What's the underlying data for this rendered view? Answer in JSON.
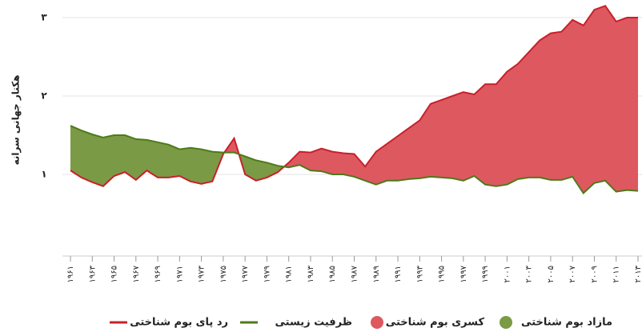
{
  "chart_data": {
    "type": "area-line",
    "y_axis_label": "هکتار جهانی سرانه",
    "x": [
      1961,
      1962,
      1963,
      1964,
      1965,
      1966,
      1967,
      1968,
      1969,
      1970,
      1971,
      1972,
      1973,
      1974,
      1975,
      1976,
      1977,
      1978,
      1979,
      1980,
      1981,
      1982,
      1983,
      1984,
      1985,
      1986,
      1987,
      1988,
      1989,
      1990,
      1991,
      1992,
      1993,
      1994,
      1995,
      1996,
      1997,
      1998,
      1999,
      2000,
      2001,
      2002,
      2003,
      2004,
      2005,
      2006,
      2007,
      2008,
      2009,
      2010,
      2011,
      2012,
      2013
    ],
    "series": [
      {
        "name": "رد پای بوم شناختی",
        "color": "#c8202a",
        "values": [
          1.05,
          0.96,
          0.9,
          0.85,
          0.98,
          1.03,
          0.93,
          1.05,
          0.96,
          0.96,
          0.98,
          0.91,
          0.88,
          0.91,
          1.26,
          1.46,
          1.0,
          0.92,
          0.96,
          1.03,
          1.15,
          1.29,
          1.28,
          1.33,
          1.29,
          1.27,
          1.26,
          1.1,
          1.29,
          1.39,
          1.49,
          1.59,
          1.69,
          1.9,
          1.95,
          2.0,
          2.05,
          2.02,
          2.15,
          2.15,
          2.31,
          2.41,
          2.56,
          2.71,
          2.8,
          2.82,
          2.97,
          2.9,
          3.1,
          3.15,
          2.95,
          3.0,
          3.0
        ]
      },
      {
        "name": "ظرفیت زیستی",
        "color": "#4d7a1a",
        "values": [
          1.62,
          1.56,
          1.51,
          1.47,
          1.5,
          1.5,
          1.45,
          1.44,
          1.41,
          1.38,
          1.32,
          1.34,
          1.32,
          1.29,
          1.28,
          1.28,
          1.23,
          1.18,
          1.15,
          1.11,
          1.09,
          1.12,
          1.05,
          1.04,
          1.0,
          1.0,
          0.97,
          0.92,
          0.87,
          0.92,
          0.92,
          0.94,
          0.95,
          0.97,
          0.96,
          0.95,
          0.92,
          0.98,
          0.87,
          0.85,
          0.87,
          0.94,
          0.96,
          0.96,
          0.93,
          0.93,
          0.97,
          0.76,
          0.89,
          0.92,
          0.78,
          0.8,
          0.79
        ]
      }
    ],
    "areas": [
      {
        "name": "مازاد بوم شناختی",
        "color": "#7a9a45"
      },
      {
        "name": "کسری بوم شناختی",
        "color": "#de5860"
      }
    ],
    "xlim": [
      1961,
      2013
    ],
    "xticks": [
      {
        "value": 1961,
        "label": "۱۹۶۱"
      },
      {
        "value": 1963,
        "label": "۱۹۶۳"
      },
      {
        "value": 1965,
        "label": "۱۹۶۵"
      },
      {
        "value": 1967,
        "label": "۱۹۶۷"
      },
      {
        "value": 1969,
        "label": "۱۹۶۹"
      },
      {
        "value": 1971,
        "label": "۱۹۷۱"
      },
      {
        "value": 1973,
        "label": "۱۹۷۳"
      },
      {
        "value": 1975,
        "label": "۱۹۷۵"
      },
      {
        "value": 1977,
        "label": "۱۹۷۷"
      },
      {
        "value": 1979,
        "label": "۱۹۷۹"
      },
      {
        "value": 1981,
        "label": "۱۹۸۱"
      },
      {
        "value": 1983,
        "label": "۱۹۸۳"
      },
      {
        "value": 1985,
        "label": "۱۹۸۵"
      },
      {
        "value": 1987,
        "label": "۱۹۸۷"
      },
      {
        "value": 1989,
        "label": "۱۹۸۹"
      },
      {
        "value": 1991,
        "label": "۱۹۹۱"
      },
      {
        "value": 1993,
        "label": "۱۹۹۳"
      },
      {
        "value": 1995,
        "label": "۱۹۹۵"
      },
      {
        "value": 1997,
        "label": "۱۹۹۷"
      },
      {
        "value": 1999,
        "label": "۱۹۹۹"
      },
      {
        "value": 2001,
        "label": "۲۰۰۱"
      },
      {
        "value": 2003,
        "label": "۲۰۰۳"
      },
      {
        "value": 2005,
        "label": "۲۰۰۵"
      },
      {
        "value": 2007,
        "label": "۲۰۰۷"
      },
      {
        "value": 2009,
        "label": "۲۰۰۹"
      },
      {
        "value": 2011,
        "label": "۲۰۱۱"
      },
      {
        "value": 2013,
        "label": "۲۰۱۳"
      }
    ],
    "ylim": [
      0,
      3.2
    ],
    "yticks": [
      {
        "value": 1,
        "label": "۱"
      },
      {
        "value": 2,
        "label": "۲"
      },
      {
        "value": 3,
        "label": "۳"
      }
    ],
    "grid": true
  }
}
